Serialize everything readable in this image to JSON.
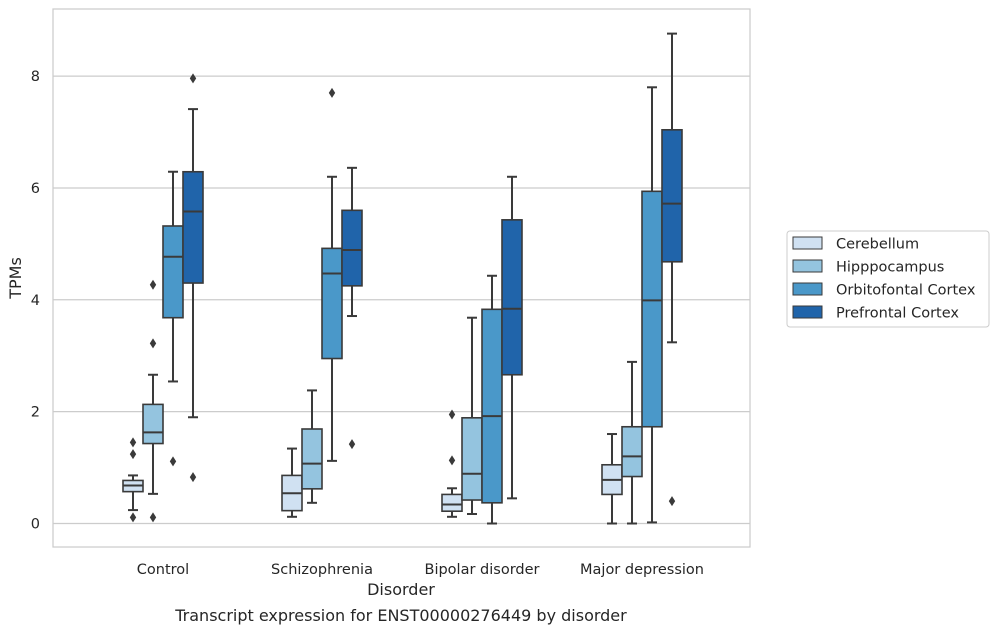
{
  "chart_data": {
    "type": "box",
    "caption": "Transcript expression for ENST00000276449 by disorder",
    "xlabel": "Disorder",
    "ylabel": "TPMs",
    "ylim": [
      -0.42,
      9.2
    ],
    "yticks": [
      0,
      2,
      4,
      6,
      8
    ],
    "grid": "horizontal",
    "legend_position": "right",
    "categories": [
      "Control",
      "Schizophrenia",
      "Bipolar disorder",
      "Major depression"
    ],
    "series": [
      {
        "name": "Cerebellum",
        "color": "#d0e1f2",
        "boxes": [
          {
            "whislo": 0.24,
            "q1": 0.57,
            "med": 0.68,
            "q3": 0.77,
            "whishi": 0.86,
            "fliers": [
              1.24,
              1.45,
              0.11
            ]
          },
          {
            "whislo": 0.12,
            "q1": 0.23,
            "med": 0.54,
            "q3": 0.86,
            "whishi": 1.34,
            "fliers": []
          },
          {
            "whislo": 0.12,
            "q1": 0.22,
            "med": 0.34,
            "q3": 0.52,
            "whishi": 0.63,
            "fliers": [
              1.13,
              1.95
            ]
          },
          {
            "whislo": 0.0,
            "q1": 0.52,
            "med": 0.78,
            "q3": 1.05,
            "whishi": 1.6,
            "fliers": []
          }
        ]
      },
      {
        "name": "Hipppocampus",
        "color": "#94c4df",
        "boxes": [
          {
            "whislo": 0.53,
            "q1": 1.43,
            "med": 1.63,
            "q3": 2.13,
            "whishi": 2.66,
            "fliers": [
              4.27,
              3.22,
              0.11
            ]
          },
          {
            "whislo": 0.37,
            "q1": 0.62,
            "med": 1.07,
            "q3": 1.69,
            "whishi": 2.38,
            "fliers": []
          },
          {
            "whislo": 0.17,
            "q1": 0.42,
            "med": 0.89,
            "q3": 1.89,
            "whishi": 3.68,
            "fliers": []
          },
          {
            "whislo": 0.0,
            "q1": 0.84,
            "med": 1.2,
            "q3": 1.73,
            "whishi": 2.89,
            "fliers": []
          }
        ]
      },
      {
        "name": "Orbitofontal Cortex",
        "color": "#4a98c9",
        "boxes": [
          {
            "whislo": 2.54,
            "q1": 3.68,
            "med": 4.77,
            "q3": 5.32,
            "whishi": 6.29,
            "fliers": [
              1.11
            ]
          },
          {
            "whislo": 1.12,
            "q1": 2.95,
            "med": 4.47,
            "q3": 4.92,
            "whishi": 6.2,
            "fliers": [
              7.7
            ]
          },
          {
            "whislo": 0.0,
            "q1": 0.37,
            "med": 1.92,
            "q3": 3.83,
            "whishi": 4.43,
            "fliers": []
          },
          {
            "whislo": 0.02,
            "q1": 1.73,
            "med": 3.99,
            "q3": 5.94,
            "whishi": 7.8,
            "fliers": []
          }
        ]
      },
      {
        "name": "Prefrontal Cortex",
        "color": "#2064aa",
        "boxes": [
          {
            "whislo": 1.9,
            "q1": 4.3,
            "med": 5.58,
            "q3": 6.29,
            "whishi": 7.41,
            "fliers": [
              7.96,
              0.83
            ]
          },
          {
            "whislo": 3.71,
            "q1": 4.25,
            "med": 4.89,
            "q3": 5.6,
            "whishi": 6.36,
            "fliers": [
              1.42
            ]
          },
          {
            "whislo": 0.45,
            "q1": 2.66,
            "med": 3.84,
            "q3": 5.43,
            "whishi": 6.2,
            "fliers": []
          },
          {
            "whislo": 3.24,
            "q1": 4.68,
            "med": 5.72,
            "q3": 7.04,
            "whishi": 8.76,
            "fliers": [
              0.4
            ]
          }
        ]
      }
    ]
  }
}
